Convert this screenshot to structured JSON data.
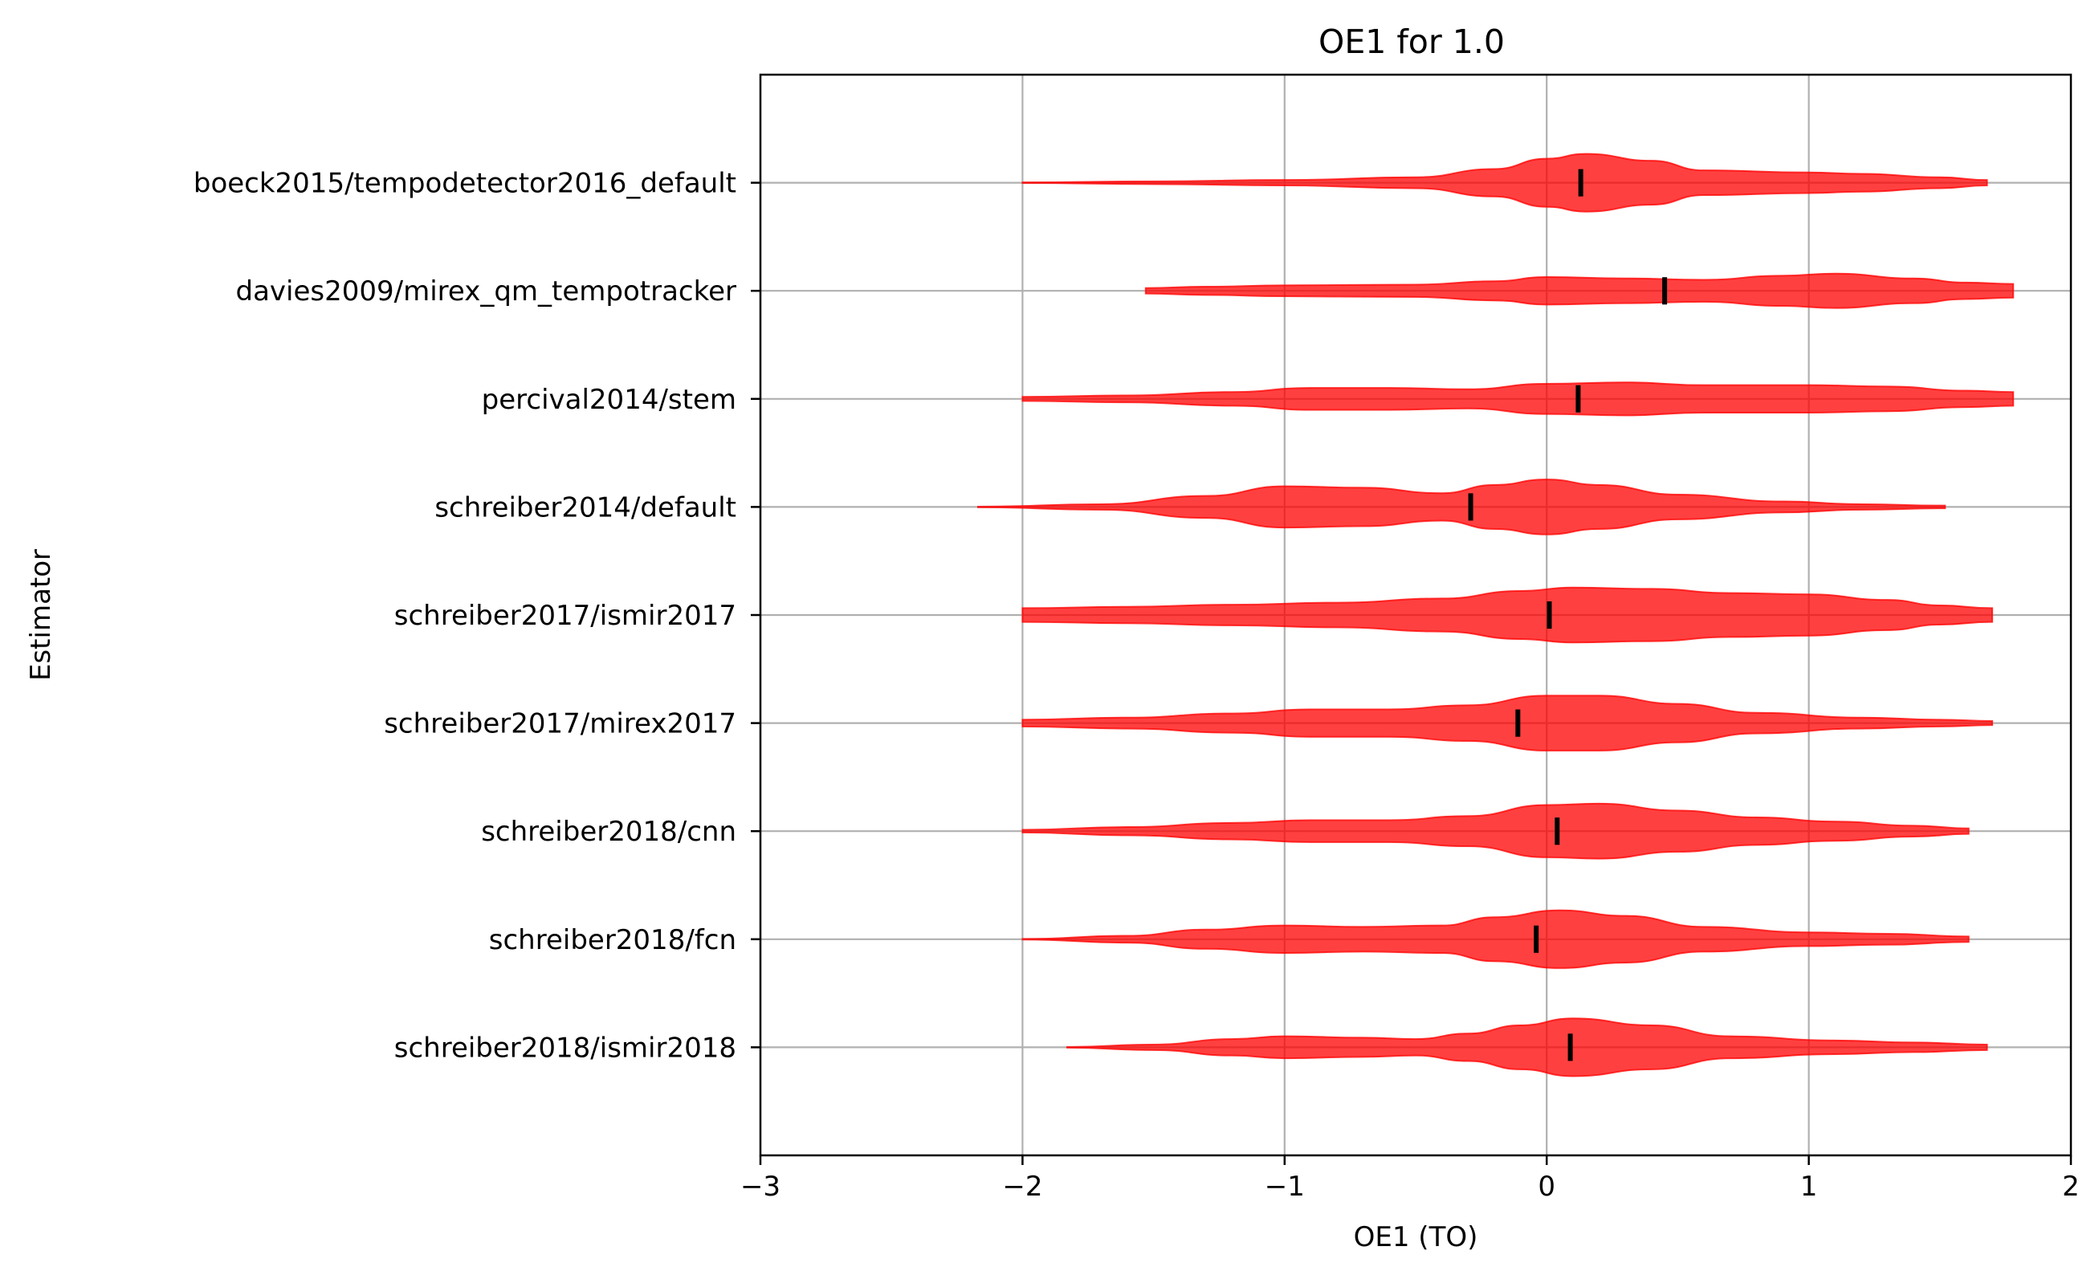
{
  "chart_data": {
    "type": "violin",
    "orientation": "horizontal",
    "title": "OE1 for 1.0",
    "xlabel": "OE1 (TO)",
    "ylabel": "Estimator",
    "xlim": [
      -3,
      2
    ],
    "xticks": [
      -3,
      -2,
      -1,
      0,
      1,
      2
    ],
    "xtick_labels": [
      "−3",
      "−2",
      "−1",
      "0",
      "1",
      "2"
    ],
    "grid": true,
    "violin_color": "#ff0000",
    "median_color": "#000000",
    "categories": [
      "boeck2015/tempodetector2016_default",
      "davies2009/mirex_qm_tempotracker",
      "percival2014/stem",
      "schreiber2014/default",
      "schreiber2017/ismir2017",
      "schreiber2017/mirex2017",
      "schreiber2018/cnn",
      "schreiber2018/fcn",
      "schreiber2018/ismir2018"
    ],
    "series": [
      {
        "min": -2.0,
        "max": 1.68,
        "median": 0.13,
        "density": [
          [
            -2.0,
            0.005
          ],
          [
            -1.5,
            0.02
          ],
          [
            -1.0,
            0.04
          ],
          [
            -0.5,
            0.08
          ],
          [
            -0.2,
            0.2
          ],
          [
            0.0,
            0.35
          ],
          [
            0.15,
            0.42
          ],
          [
            0.4,
            0.32
          ],
          [
            0.6,
            0.18
          ],
          [
            1.0,
            0.15
          ],
          [
            1.2,
            0.13
          ],
          [
            1.5,
            0.08
          ],
          [
            1.68,
            0.04
          ]
        ]
      },
      {
        "min": -1.53,
        "max": 1.78,
        "median": 0.45,
        "density": [
          [
            -1.53,
            0.04
          ],
          [
            -1.3,
            0.06
          ],
          [
            -1.0,
            0.08
          ],
          [
            -0.5,
            0.09
          ],
          [
            -0.2,
            0.14
          ],
          [
            0.0,
            0.2
          ],
          [
            0.3,
            0.18
          ],
          [
            0.6,
            0.16
          ],
          [
            0.9,
            0.22
          ],
          [
            1.1,
            0.25
          ],
          [
            1.4,
            0.18
          ],
          [
            1.6,
            0.12
          ],
          [
            1.78,
            0.1
          ]
        ]
      },
      {
        "min": -2.0,
        "max": 1.78,
        "median": 0.12,
        "density": [
          [
            -2.0,
            0.03
          ],
          [
            -1.6,
            0.05
          ],
          [
            -1.2,
            0.1
          ],
          [
            -0.9,
            0.16
          ],
          [
            -0.6,
            0.16
          ],
          [
            -0.3,
            0.14
          ],
          [
            0.0,
            0.22
          ],
          [
            0.3,
            0.24
          ],
          [
            0.6,
            0.2
          ],
          [
            1.0,
            0.2
          ],
          [
            1.3,
            0.18
          ],
          [
            1.6,
            0.12
          ],
          [
            1.78,
            0.1
          ]
        ]
      },
      {
        "min": -2.17,
        "max": 1.52,
        "median": -0.29,
        "density": [
          [
            -2.17,
            0.005
          ],
          [
            -1.7,
            0.04
          ],
          [
            -1.3,
            0.16
          ],
          [
            -1.0,
            0.3
          ],
          [
            -0.7,
            0.28
          ],
          [
            -0.4,
            0.2
          ],
          [
            -0.2,
            0.32
          ],
          [
            0.0,
            0.4
          ],
          [
            0.2,
            0.32
          ],
          [
            0.5,
            0.18
          ],
          [
            0.9,
            0.08
          ],
          [
            1.2,
            0.04
          ],
          [
            1.52,
            0.02
          ]
        ]
      },
      {
        "min": -2.0,
        "max": 1.7,
        "median": 0.01,
        "density": [
          [
            -2.0,
            0.1
          ],
          [
            -1.6,
            0.12
          ],
          [
            -1.2,
            0.15
          ],
          [
            -0.8,
            0.18
          ],
          [
            -0.4,
            0.24
          ],
          [
            -0.1,
            0.35
          ],
          [
            0.1,
            0.4
          ],
          [
            0.4,
            0.38
          ],
          [
            0.7,
            0.32
          ],
          [
            1.0,
            0.3
          ],
          [
            1.3,
            0.22
          ],
          [
            1.5,
            0.14
          ],
          [
            1.7,
            0.1
          ]
        ]
      },
      {
        "min": -2.0,
        "max": 1.7,
        "median": -0.11,
        "density": [
          [
            -2.0,
            0.05
          ],
          [
            -1.6,
            0.08
          ],
          [
            -1.2,
            0.14
          ],
          [
            -0.9,
            0.2
          ],
          [
            -0.6,
            0.2
          ],
          [
            -0.3,
            0.26
          ],
          [
            0.0,
            0.4
          ],
          [
            0.2,
            0.4
          ],
          [
            0.5,
            0.28
          ],
          [
            0.8,
            0.15
          ],
          [
            1.2,
            0.08
          ],
          [
            1.5,
            0.05
          ],
          [
            1.7,
            0.03
          ]
        ]
      },
      {
        "min": -2.0,
        "max": 1.61,
        "median": 0.04,
        "density": [
          [
            -2.0,
            0.02
          ],
          [
            -1.6,
            0.06
          ],
          [
            -1.2,
            0.12
          ],
          [
            -0.9,
            0.16
          ],
          [
            -0.6,
            0.16
          ],
          [
            -0.3,
            0.22
          ],
          [
            0.0,
            0.38
          ],
          [
            0.2,
            0.4
          ],
          [
            0.5,
            0.3
          ],
          [
            0.8,
            0.2
          ],
          [
            1.1,
            0.14
          ],
          [
            1.4,
            0.08
          ],
          [
            1.61,
            0.04
          ]
        ]
      },
      {
        "min": -2.0,
        "max": 1.61,
        "median": -0.04,
        "density": [
          [
            -2.0,
            0.005
          ],
          [
            -1.6,
            0.05
          ],
          [
            -1.3,
            0.14
          ],
          [
            -1.0,
            0.2
          ],
          [
            -0.7,
            0.18
          ],
          [
            -0.4,
            0.2
          ],
          [
            -0.2,
            0.32
          ],
          [
            0.05,
            0.42
          ],
          [
            0.3,
            0.34
          ],
          [
            0.6,
            0.18
          ],
          [
            1.0,
            0.1
          ],
          [
            1.3,
            0.08
          ],
          [
            1.61,
            0.04
          ]
        ]
      },
      {
        "min": -1.83,
        "max": 1.68,
        "median": 0.09,
        "density": [
          [
            -1.83,
            0.005
          ],
          [
            -1.5,
            0.04
          ],
          [
            -1.2,
            0.12
          ],
          [
            -1.0,
            0.16
          ],
          [
            -0.7,
            0.14
          ],
          [
            -0.5,
            0.12
          ],
          [
            -0.3,
            0.2
          ],
          [
            -0.1,
            0.32
          ],
          [
            0.1,
            0.42
          ],
          [
            0.4,
            0.32
          ],
          [
            0.7,
            0.16
          ],
          [
            1.1,
            0.1
          ],
          [
            1.4,
            0.07
          ],
          [
            1.68,
            0.04
          ]
        ]
      }
    ]
  }
}
